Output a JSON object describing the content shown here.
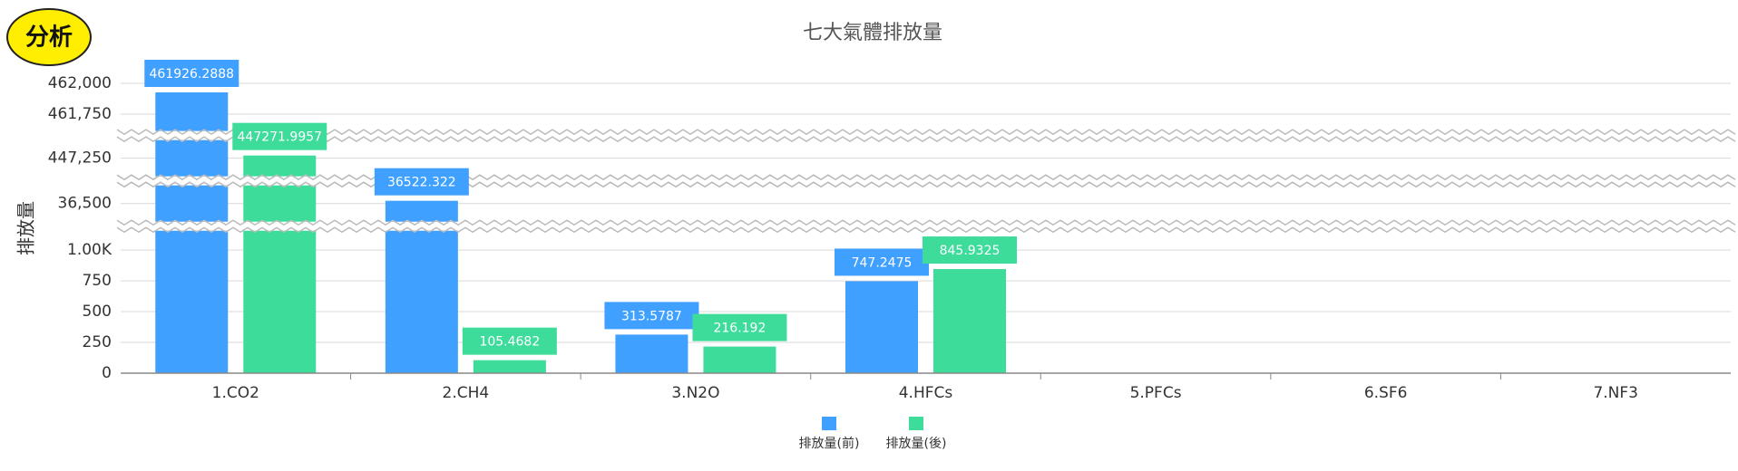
{
  "badge": "分析",
  "chart_data": {
    "type": "bar",
    "title": "七大氣體排放量",
    "y_label": "排放量",
    "categories": [
      "1.CO2",
      "2.CH4",
      "3.N2O",
      "4.HFCs",
      "5.PFCs",
      "6.SF6",
      "7.NF3"
    ],
    "series": [
      {
        "name": "排放量(前)",
        "color": "#3fa0ff",
        "values": [
          461926.2888,
          36522.322,
          313.5787,
          747.2475,
          null,
          null,
          null
        ]
      },
      {
        "name": "排放量(後)",
        "color": "#3ddc9b",
        "values": [
          447271.9957,
          105.4682,
          216.192,
          845.9325,
          null,
          null,
          null
        ]
      }
    ],
    "ylim_segments": [
      [
        0,
        1150
      ],
      [
        36360,
        36640
      ],
      [
        447110,
        447390
      ],
      [
        461620,
        462000
      ]
    ],
    "yticks": [
      0,
      250,
      500,
      750,
      {
        "value": 1000,
        "label": "1.00K"
      },
      {
        "value": 36500,
        "label": "36,500"
      },
      {
        "value": 447250,
        "label": "447,250"
      },
      {
        "value": 461750,
        "label": "461,750"
      },
      {
        "value": 462000,
        "label": "462,000"
      }
    ],
    "grid": true,
    "legend": "bottom"
  }
}
